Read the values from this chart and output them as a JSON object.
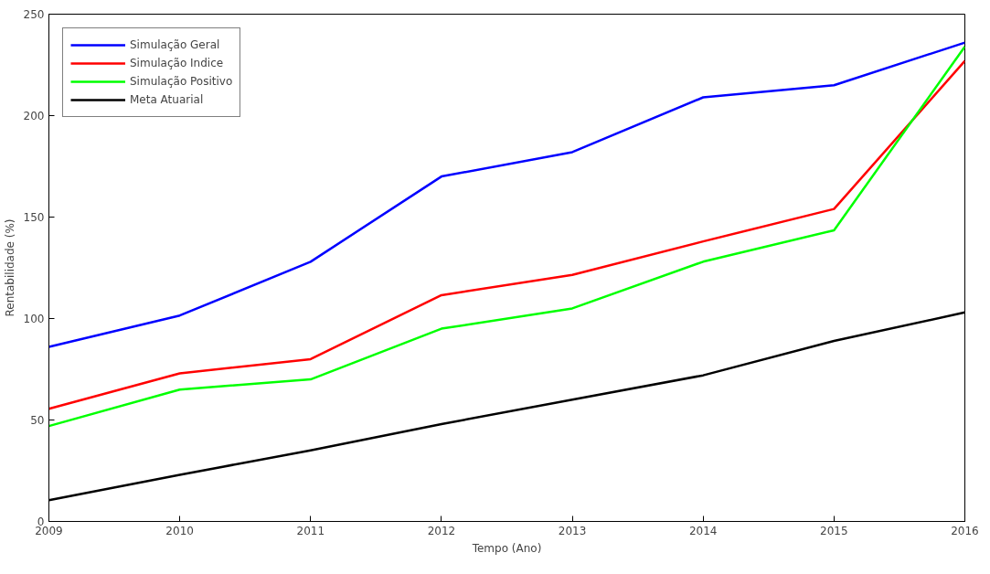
{
  "chart_data": {
    "type": "line",
    "xlabel": "Tempo (Ano)",
    "ylabel": "Rentabilidade (%)",
    "x": [
      2009,
      2010,
      2011,
      2012,
      2013,
      2014,
      2015,
      2016
    ],
    "xlim": [
      2009,
      2016
    ],
    "ylim": [
      0,
      250
    ],
    "xticks": [
      2009,
      2010,
      2011,
      2012,
      2013,
      2014,
      2015,
      2016
    ],
    "yticks": [
      0,
      50,
      100,
      150,
      200,
      250
    ],
    "grid": false,
    "legend": "top left",
    "marker": "none",
    "line_style": "solid",
    "series": [
      {
        "name": "Simulação Geral",
        "color": "#0000ff",
        "values": [
          86,
          101.5,
          128,
          170,
          182,
          209,
          215,
          236
        ]
      },
      {
        "name": "Simulação Indice",
        "color": "#ff0000",
        "values": [
          55.5,
          73,
          80,
          111.5,
          121.5,
          138,
          154,
          227
        ]
      },
      {
        "name": "Simulação Positivo",
        "color": "#00ff00",
        "values": [
          47,
          65,
          70,
          95,
          105,
          128,
          143.5,
          234
        ]
      },
      {
        "name": "Meta Atuarial",
        "color": "#000000",
        "values": [
          10.5,
          23,
          35,
          48,
          60,
          72,
          89,
          103
        ]
      }
    ]
  }
}
